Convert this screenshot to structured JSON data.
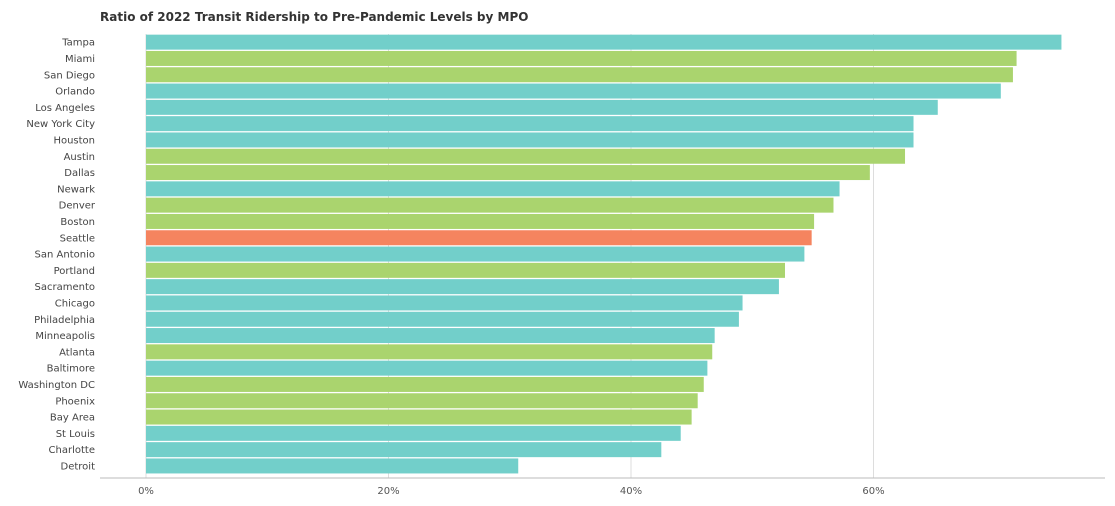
{
  "chart_data": {
    "type": "bar",
    "orientation": "horizontal",
    "title": "Ratio of 2022 Transit Ridership to Pre-Pandemic Levels by MPO",
    "xlabel": "",
    "ylabel": "",
    "xlim": [
      0,
      0.78
    ],
    "x_ticks": [
      {
        "value": 0,
        "label": "0%"
      },
      {
        "value": 0.2,
        "label": "20%"
      },
      {
        "value": 0.4,
        "label": "40%"
      },
      {
        "value": 0.6,
        "label": "60%"
      }
    ],
    "grid": "vertical",
    "categories": [
      "Tampa",
      "Miami",
      "San Diego",
      "Orlando",
      "Los Angeles",
      "New York City",
      "Houston",
      "Austin",
      "Dallas",
      "Newark",
      "Denver",
      "Boston",
      "Seattle",
      "San Antonio",
      "Portland",
      "Sacramento",
      "Chicago",
      "Philadelphia",
      "Minneapolis",
      "Atlanta",
      "Baltimore",
      "Washington DC",
      "Phoenix",
      "Bay Area",
      "St Louis",
      "Charlotte",
      "Detroit"
    ],
    "values": [
      0.755,
      0.718,
      0.715,
      0.705,
      0.653,
      0.633,
      0.633,
      0.626,
      0.597,
      0.572,
      0.567,
      0.551,
      0.549,
      0.543,
      0.527,
      0.522,
      0.492,
      0.489,
      0.469,
      0.467,
      0.463,
      0.46,
      0.455,
      0.45,
      0.441,
      0.425,
      0.307
    ],
    "colors": [
      "#72cfca",
      "#aad46e",
      "#aad46e",
      "#72cfca",
      "#72cfca",
      "#72cfca",
      "#72cfca",
      "#aad46e",
      "#aad46e",
      "#72cfca",
      "#aad46e",
      "#aad46e",
      "#f5845f",
      "#72cfca",
      "#aad46e",
      "#72cfca",
      "#72cfca",
      "#72cfca",
      "#72cfca",
      "#aad46e",
      "#72cfca",
      "#aad46e",
      "#aad46e",
      "#aad46e",
      "#72cfca",
      "#72cfca",
      "#72cfca"
    ]
  }
}
